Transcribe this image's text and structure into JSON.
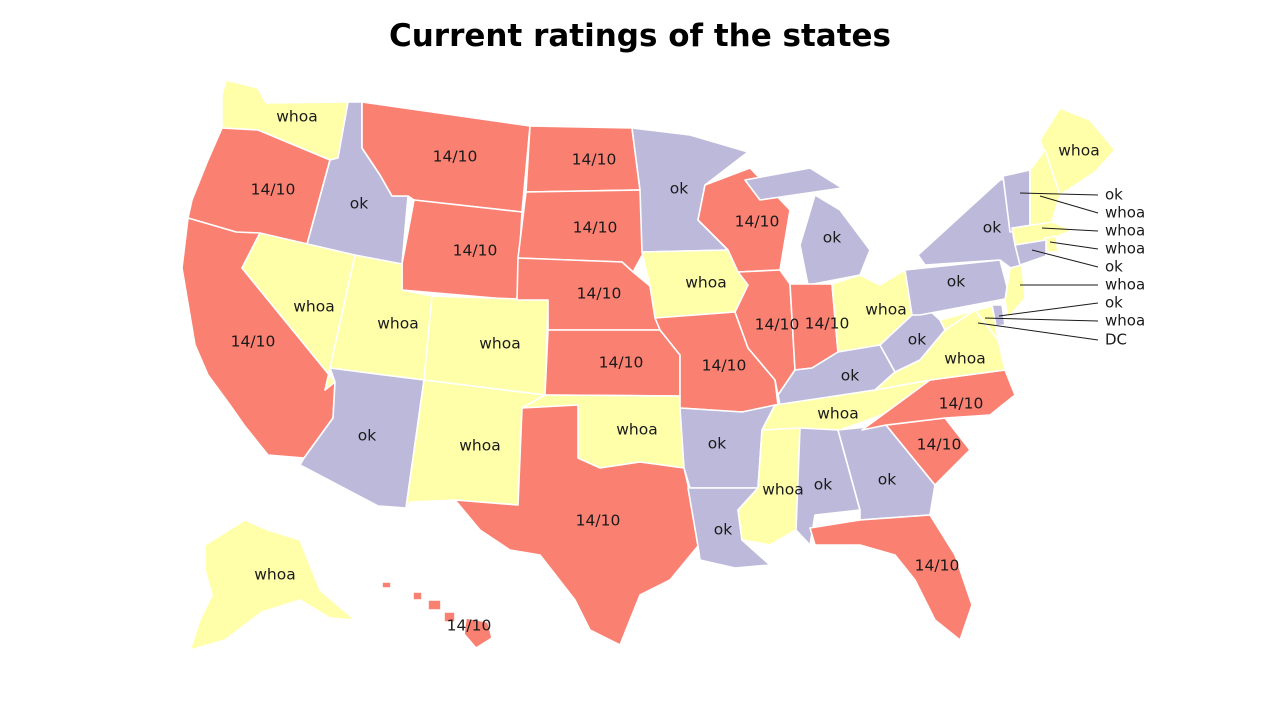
{
  "title": "Current ratings of the states",
  "colors": {
    "14/10": "#fa8072",
    "whoa": "#ffffaa",
    "ok": "#bdb9da"
  },
  "states": [
    {
      "code": "WA",
      "rating": "whoa"
    },
    {
      "code": "OR",
      "rating": "14/10"
    },
    {
      "code": "CA",
      "rating": "14/10"
    },
    {
      "code": "ID",
      "rating": "ok"
    },
    {
      "code": "NV",
      "rating": "whoa"
    },
    {
      "code": "MT",
      "rating": "14/10"
    },
    {
      "code": "WY",
      "rating": "14/10"
    },
    {
      "code": "UT",
      "rating": "whoa"
    },
    {
      "code": "AZ",
      "rating": "ok"
    },
    {
      "code": "CO",
      "rating": "whoa"
    },
    {
      "code": "NM",
      "rating": "whoa"
    },
    {
      "code": "ND",
      "rating": "14/10"
    },
    {
      "code": "SD",
      "rating": "14/10"
    },
    {
      "code": "NE",
      "rating": "14/10"
    },
    {
      "code": "KS",
      "rating": "14/10"
    },
    {
      "code": "OK",
      "rating": "whoa"
    },
    {
      "code": "TX",
      "rating": "14/10"
    },
    {
      "code": "MN",
      "rating": "ok"
    },
    {
      "code": "IA",
      "rating": "whoa"
    },
    {
      "code": "MO",
      "rating": "14/10"
    },
    {
      "code": "AR",
      "rating": "ok"
    },
    {
      "code": "LA",
      "rating": "ok"
    },
    {
      "code": "WI",
      "rating": "14/10"
    },
    {
      "code": "IL",
      "rating": "14/10"
    },
    {
      "code": "MI",
      "rating": "ok"
    },
    {
      "code": "IN",
      "rating": "14/10"
    },
    {
      "code": "OH",
      "rating": "whoa"
    },
    {
      "code": "KY",
      "rating": "ok"
    },
    {
      "code": "TN",
      "rating": "whoa"
    },
    {
      "code": "MS",
      "rating": "whoa"
    },
    {
      "code": "AL",
      "rating": "ok"
    },
    {
      "code": "GA",
      "rating": "ok"
    },
    {
      "code": "FL",
      "rating": "14/10"
    },
    {
      "code": "SC",
      "rating": "14/10"
    },
    {
      "code": "NC",
      "rating": "14/10"
    },
    {
      "code": "VA",
      "rating": "whoa"
    },
    {
      "code": "WV",
      "rating": "ok"
    },
    {
      "code": "PA",
      "rating": "ok"
    },
    {
      "code": "NY",
      "rating": "ok"
    },
    {
      "code": "ME",
      "rating": "whoa"
    },
    {
      "code": "AK",
      "rating": "whoa"
    },
    {
      "code": "HI",
      "rating": "14/10"
    }
  ],
  "callouts": [
    {
      "code": "VT",
      "rating": "ok"
    },
    {
      "code": "NH",
      "rating": "whoa"
    },
    {
      "code": "MA",
      "rating": "whoa"
    },
    {
      "code": "RI",
      "rating": "whoa"
    },
    {
      "code": "CT",
      "rating": "ok"
    },
    {
      "code": "NJ",
      "rating": "whoa"
    },
    {
      "code": "DE",
      "rating": "ok"
    },
    {
      "code": "MD",
      "rating": "whoa"
    },
    {
      "code": "DC",
      "rating": "DC"
    }
  ]
}
